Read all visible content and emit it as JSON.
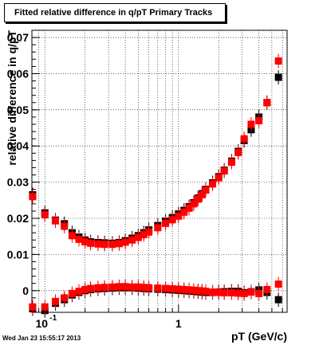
{
  "chart_data": {
    "type": "scatter",
    "title": "Fitted relative difference in q/pT  Primary Tracks",
    "xlabel": "pT (GeV/c)",
    "ylabel": "relative difference in q/pT",
    "xscale": "log",
    "xlim": [
      0.08,
      6.5
    ],
    "ylim": [
      -0.006,
      0.072
    ],
    "grid": true,
    "x_tick_labels": [
      "10",
      "-1",
      "1"
    ],
    "y_tick_labels": [
      "0",
      "0.01",
      "0.02",
      "0.03",
      "0.04",
      "0.05",
      "0.06",
      "0.07"
    ],
    "series": [
      {
        "color": "#000000",
        "points": [
          [
            0.081,
            0.0265
          ],
          [
            0.1,
            0.0215
          ],
          [
            0.12,
            0.0195
          ],
          [
            0.14,
            0.0185
          ],
          [
            0.16,
            0.016
          ],
          [
            0.18,
            0.0148
          ],
          [
            0.2,
            0.014
          ],
          [
            0.22,
            0.0135
          ],
          [
            0.25,
            0.0133
          ],
          [
            0.28,
            0.0132
          ],
          [
            0.32,
            0.0131
          ],
          [
            0.36,
            0.0133
          ],
          [
            0.4,
            0.0138
          ],
          [
            0.45,
            0.0145
          ],
          [
            0.5,
            0.0152
          ],
          [
            0.55,
            0.016
          ],
          [
            0.6,
            0.0168
          ],
          [
            0.7,
            0.018
          ],
          [
            0.8,
            0.0192
          ],
          [
            0.9,
            0.0202
          ],
          [
            1.0,
            0.0212
          ],
          [
            1.1,
            0.0222
          ],
          [
            1.2,
            0.0232
          ],
          [
            1.3,
            0.0243
          ],
          [
            1.4,
            0.0256
          ],
          [
            1.5,
            0.0268
          ],
          [
            1.6,
            0.028
          ],
          [
            1.8,
            0.0298
          ],
          [
            2.0,
            0.0315
          ],
          [
            2.2,
            0.0333
          ],
          [
            2.5,
            0.0358
          ],
          [
            2.8,
            0.0385
          ],
          [
            3.1,
            0.0415
          ],
          [
            3.5,
            0.0445
          ],
          [
            4.0,
            0.048
          ],
          [
            4.6,
            0.052
          ],
          [
            5.6,
            0.059
          ],
          [
            0.081,
            -0.005
          ],
          [
            0.1,
            -0.0055
          ],
          [
            0.12,
            -0.0035
          ],
          [
            0.14,
            -0.0025
          ],
          [
            0.16,
            -0.0012
          ],
          [
            0.18,
            -0.0005
          ],
          [
            0.2,
            0.0
          ],
          [
            0.22,
            0.0003
          ],
          [
            0.25,
            0.0005
          ],
          [
            0.28,
            0.0006
          ],
          [
            0.32,
            0.0007
          ],
          [
            0.36,
            0.0008
          ],
          [
            0.4,
            0.0008
          ],
          [
            0.45,
            0.0008
          ],
          [
            0.5,
            0.0007
          ],
          [
            0.55,
            0.0006
          ],
          [
            0.6,
            0.0005
          ],
          [
            0.7,
            0.0004
          ],
          [
            0.8,
            0.0003
          ],
          [
            0.9,
            0.0002
          ],
          [
            1.0,
            0.0001
          ],
          [
            1.1,
            0.0
          ],
          [
            1.2,
            -0.0001
          ],
          [
            1.3,
            -0.0002
          ],
          [
            1.4,
            -0.0003
          ],
          [
            1.5,
            -0.0004
          ],
          [
            1.6,
            -0.0005
          ],
          [
            1.8,
            -0.0005
          ],
          [
            2.0,
            -0.0004
          ],
          [
            2.2,
            -0.0003
          ],
          [
            2.5,
            -0.0002
          ],
          [
            2.8,
            -0.0002
          ],
          [
            3.1,
            -0.0006
          ],
          [
            3.5,
            -0.0003
          ],
          [
            4.0,
            0.0002
          ],
          [
            4.6,
            -0.0005
          ],
          [
            5.6,
            -0.0025
          ]
        ]
      },
      {
        "color": "#ff0000",
        "points": [
          [
            0.081,
            0.026
          ],
          [
            0.1,
            0.021
          ],
          [
            0.12,
            0.0193
          ],
          [
            0.14,
            0.0178
          ],
          [
            0.16,
            0.0152
          ],
          [
            0.18,
            0.0142
          ],
          [
            0.2,
            0.0135
          ],
          [
            0.22,
            0.0131
          ],
          [
            0.25,
            0.0129
          ],
          [
            0.28,
            0.0128
          ],
          [
            0.32,
            0.0128
          ],
          [
            0.36,
            0.013
          ],
          [
            0.4,
            0.0134
          ],
          [
            0.45,
            0.014
          ],
          [
            0.5,
            0.0147
          ],
          [
            0.55,
            0.0155
          ],
          [
            0.6,
            0.0162
          ],
          [
            0.7,
            0.0174
          ],
          [
            0.8,
            0.0186
          ],
          [
            0.9,
            0.0196
          ],
          [
            1.0,
            0.0206
          ],
          [
            1.1,
            0.0217
          ],
          [
            1.2,
            0.0228
          ],
          [
            1.3,
            0.024
          ],
          [
            1.4,
            0.0253
          ],
          [
            1.5,
            0.0265
          ],
          [
            1.6,
            0.0278
          ],
          [
            1.8,
            0.0295
          ],
          [
            2.0,
            0.0312
          ],
          [
            2.2,
            0.0331
          ],
          [
            2.5,
            0.0355
          ],
          [
            2.8,
            0.0382
          ],
          [
            3.1,
            0.042
          ],
          [
            3.5,
            0.046
          ],
          [
            4.0,
            0.047
          ],
          [
            4.6,
            0.052
          ],
          [
            5.6,
            0.0635
          ],
          [
            0.081,
            -0.0045
          ],
          [
            0.1,
            -0.0045
          ],
          [
            0.12,
            -0.003
          ],
          [
            0.14,
            -0.002
          ],
          [
            0.16,
            -0.0008
          ],
          [
            0.18,
            -0.0002
          ],
          [
            0.2,
            0.0003
          ],
          [
            0.22,
            0.0006
          ],
          [
            0.25,
            0.0008
          ],
          [
            0.28,
            0.0009
          ],
          [
            0.32,
            0.001
          ],
          [
            0.36,
            0.0011
          ],
          [
            0.4,
            0.0011
          ],
          [
            0.45,
            0.001
          ],
          [
            0.5,
            0.001
          ],
          [
            0.55,
            0.0009
          ],
          [
            0.6,
            0.0008
          ],
          [
            0.7,
            0.0007
          ],
          [
            0.8,
            0.0006
          ],
          [
            0.9,
            0.0005
          ],
          [
            1.0,
            0.0004
          ],
          [
            1.1,
            0.0003
          ],
          [
            1.2,
            0.0002
          ],
          [
            1.3,
            0.0001
          ],
          [
            1.4,
            0.0
          ],
          [
            1.5,
            -0.0001
          ],
          [
            1.6,
            -0.0002
          ],
          [
            1.8,
            -0.0004
          ],
          [
            2.0,
            -0.0005
          ],
          [
            2.2,
            -0.0006
          ],
          [
            2.5,
            -0.0006
          ],
          [
            2.8,
            -0.0007
          ],
          [
            3.1,
            -0.0008
          ],
          [
            3.5,
            -0.0004
          ],
          [
            4.0,
            -0.0008
          ],
          [
            4.6,
            0.0003
          ],
          [
            5.6,
            0.0018
          ]
        ]
      }
    ]
  },
  "footer": "Wed Jan 23 15:55:17 2013"
}
